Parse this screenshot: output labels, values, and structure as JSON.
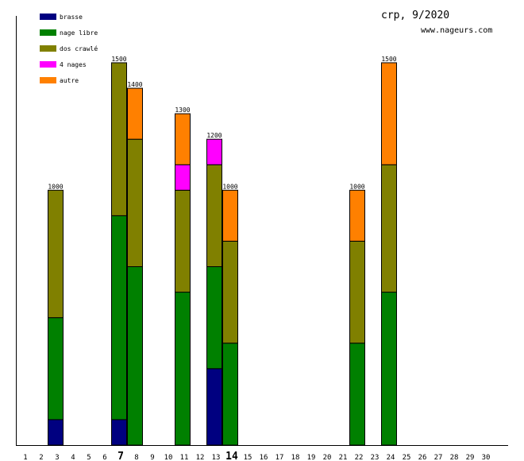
{
  "chart_data": {
    "type": "bar",
    "stacked": true,
    "title": "crp, 9/2020",
    "subtitle": "www.nageurs.com",
    "xlabel": "",
    "ylabel": "",
    "ylim": [
      0,
      1680
    ],
    "grid": false,
    "legend_position": "top-left",
    "days": [
      1,
      2,
      3,
      4,
      5,
      6,
      7,
      8,
      9,
      10,
      11,
      12,
      13,
      14,
      15,
      16,
      17,
      18,
      19,
      20,
      21,
      22,
      23,
      24,
      25,
      26,
      27,
      28,
      29,
      30
    ],
    "highlight_days": [
      7,
      14
    ],
    "categories": [
      "3",
      "7",
      "8",
      "11",
      "13",
      "14",
      "22",
      "24"
    ],
    "totals": [
      1000,
      1500,
      1400,
      1300,
      1200,
      1000,
      1000,
      1500
    ],
    "series": [
      {
        "name": "brasse",
        "color": "#000080",
        "values": [
          100,
          100,
          0,
          0,
          300,
          0,
          0,
          0
        ]
      },
      {
        "name": "nage libre",
        "color": "#008000",
        "values": [
          400,
          800,
          700,
          600,
          400,
          400,
          400,
          600
        ]
      },
      {
        "name": "dos crawlé",
        "color": "#808000",
        "values": [
          500,
          600,
          500,
          400,
          400,
          400,
          400,
          500
        ]
      },
      {
        "name": "4 nages",
        "color": "#ff00ff",
        "values": [
          0,
          0,
          0,
          100,
          100,
          0,
          0,
          0
        ]
      },
      {
        "name": "autre",
        "color": "#ff8000",
        "values": [
          0,
          0,
          200,
          200,
          0,
          200,
          200,
          400
        ]
      }
    ]
  }
}
